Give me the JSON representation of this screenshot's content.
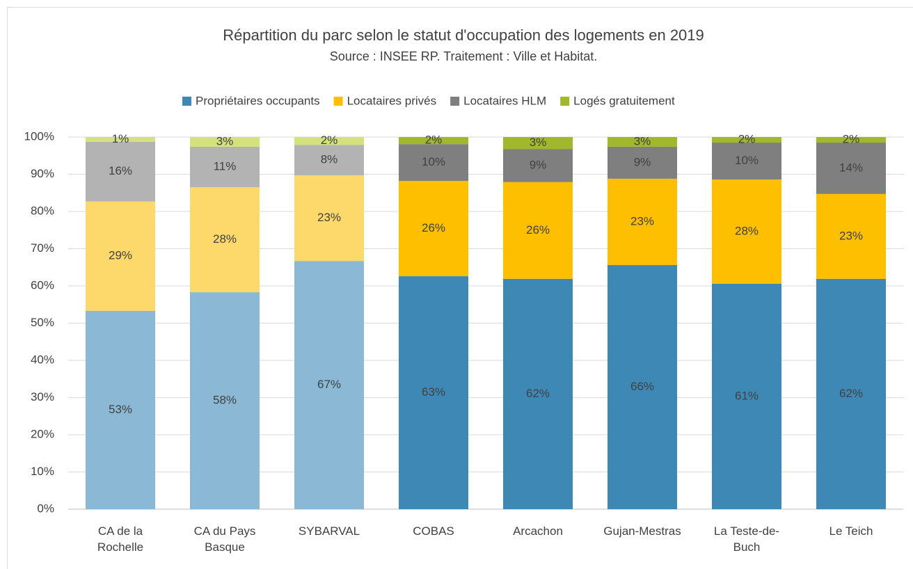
{
  "chart_data": {
    "type": "stacked_bar",
    "title": "Répartition du parc selon le statut d'occupation des logements en 2019",
    "subtitle": "Source : INSEE RP. Traitement : Ville et Habitat.",
    "categories": [
      "CA de la Rochelle",
      "CA du Pays Basque",
      "SYBARVAL",
      "COBAS",
      "Arcachon",
      "Gujan-Mestras",
      "La Teste-de-Buch",
      "Le Teich"
    ],
    "series": [
      {
        "name": "Propriétaires occupants",
        "color": "#3e88b5",
        "colors": [
          "#8bb9d5",
          "#8bb9d5",
          "#8bb9d5",
          "#3e88b5",
          "#3e88b5",
          "#3e88b5",
          "#3e88b5",
          "#3e88b5"
        ],
        "values": [
          53.3,
          58.3,
          66.7,
          62.6,
          61.9,
          65.6,
          60.6,
          61.9
        ],
        "value_labels": [
          "53%",
          "58%",
          "67%",
          "63%",
          "62%",
          "66%",
          "61%",
          "62%"
        ]
      },
      {
        "name": "Locataires privés",
        "color": "#fdbf00",
        "colors": [
          "#fdd86a",
          "#fdd86a",
          "#fdd86a",
          "#fdbf00",
          "#fdbf00",
          "#fdbf00",
          "#fdbf00",
          "#fdbf00"
        ],
        "values": [
          29.4,
          28.2,
          23.0,
          25.6,
          26.0,
          23.2,
          28.0,
          22.8
        ],
        "value_labels": [
          "29%",
          "28%",
          "23%",
          "26%",
          "26%",
          "23%",
          "28%",
          "23%"
        ]
      },
      {
        "name": "Locataires HLM",
        "color": "#7f7f7f",
        "colors": [
          "#b3b3b3",
          "#b3b3b3",
          "#b3b3b3",
          "#7f7f7f",
          "#7f7f7f",
          "#7f7f7f",
          "#7f7f7f",
          "#7f7f7f"
        ],
        "values": [
          16.0,
          10.9,
          8.2,
          9.9,
          8.9,
          8.6,
          9.9,
          13.8
        ],
        "value_labels": [
          "16%",
          "11%",
          "8%",
          "10%",
          "9%",
          "9%",
          "10%",
          "14%"
        ]
      },
      {
        "name": "Logés gratuitement",
        "color": "#a2b82c",
        "colors": [
          "#d4e27c",
          "#d4e27c",
          "#d4e27c",
          "#a2b82c",
          "#a2b82c",
          "#a2b82c",
          "#a2b82c",
          "#a2b82c"
        ],
        "values": [
          1.3,
          2.6,
          2.1,
          1.9,
          3.2,
          2.6,
          1.5,
          1.5
        ],
        "value_labels": [
          "1%",
          "3%",
          "2%",
          "2%",
          "3%",
          "3%",
          "2%",
          "2%"
        ]
      }
    ],
    "ylim": [
      0,
      100
    ],
    "yticks": [
      {
        "value": 0,
        "label": "0%"
      },
      {
        "value": 10,
        "label": "10%"
      },
      {
        "value": 20,
        "label": "20%"
      },
      {
        "value": 30,
        "label": "30%"
      },
      {
        "value": 40,
        "label": "40%"
      },
      {
        "value": 50,
        "label": "50%"
      },
      {
        "value": 60,
        "label": "60%"
      },
      {
        "value": 70,
        "label": "70%"
      },
      {
        "value": 80,
        "label": "80%"
      },
      {
        "value": 90,
        "label": "90%"
      },
      {
        "value": 100,
        "label": "100%"
      }
    ],
    "grid": true,
    "legend": "top"
  }
}
